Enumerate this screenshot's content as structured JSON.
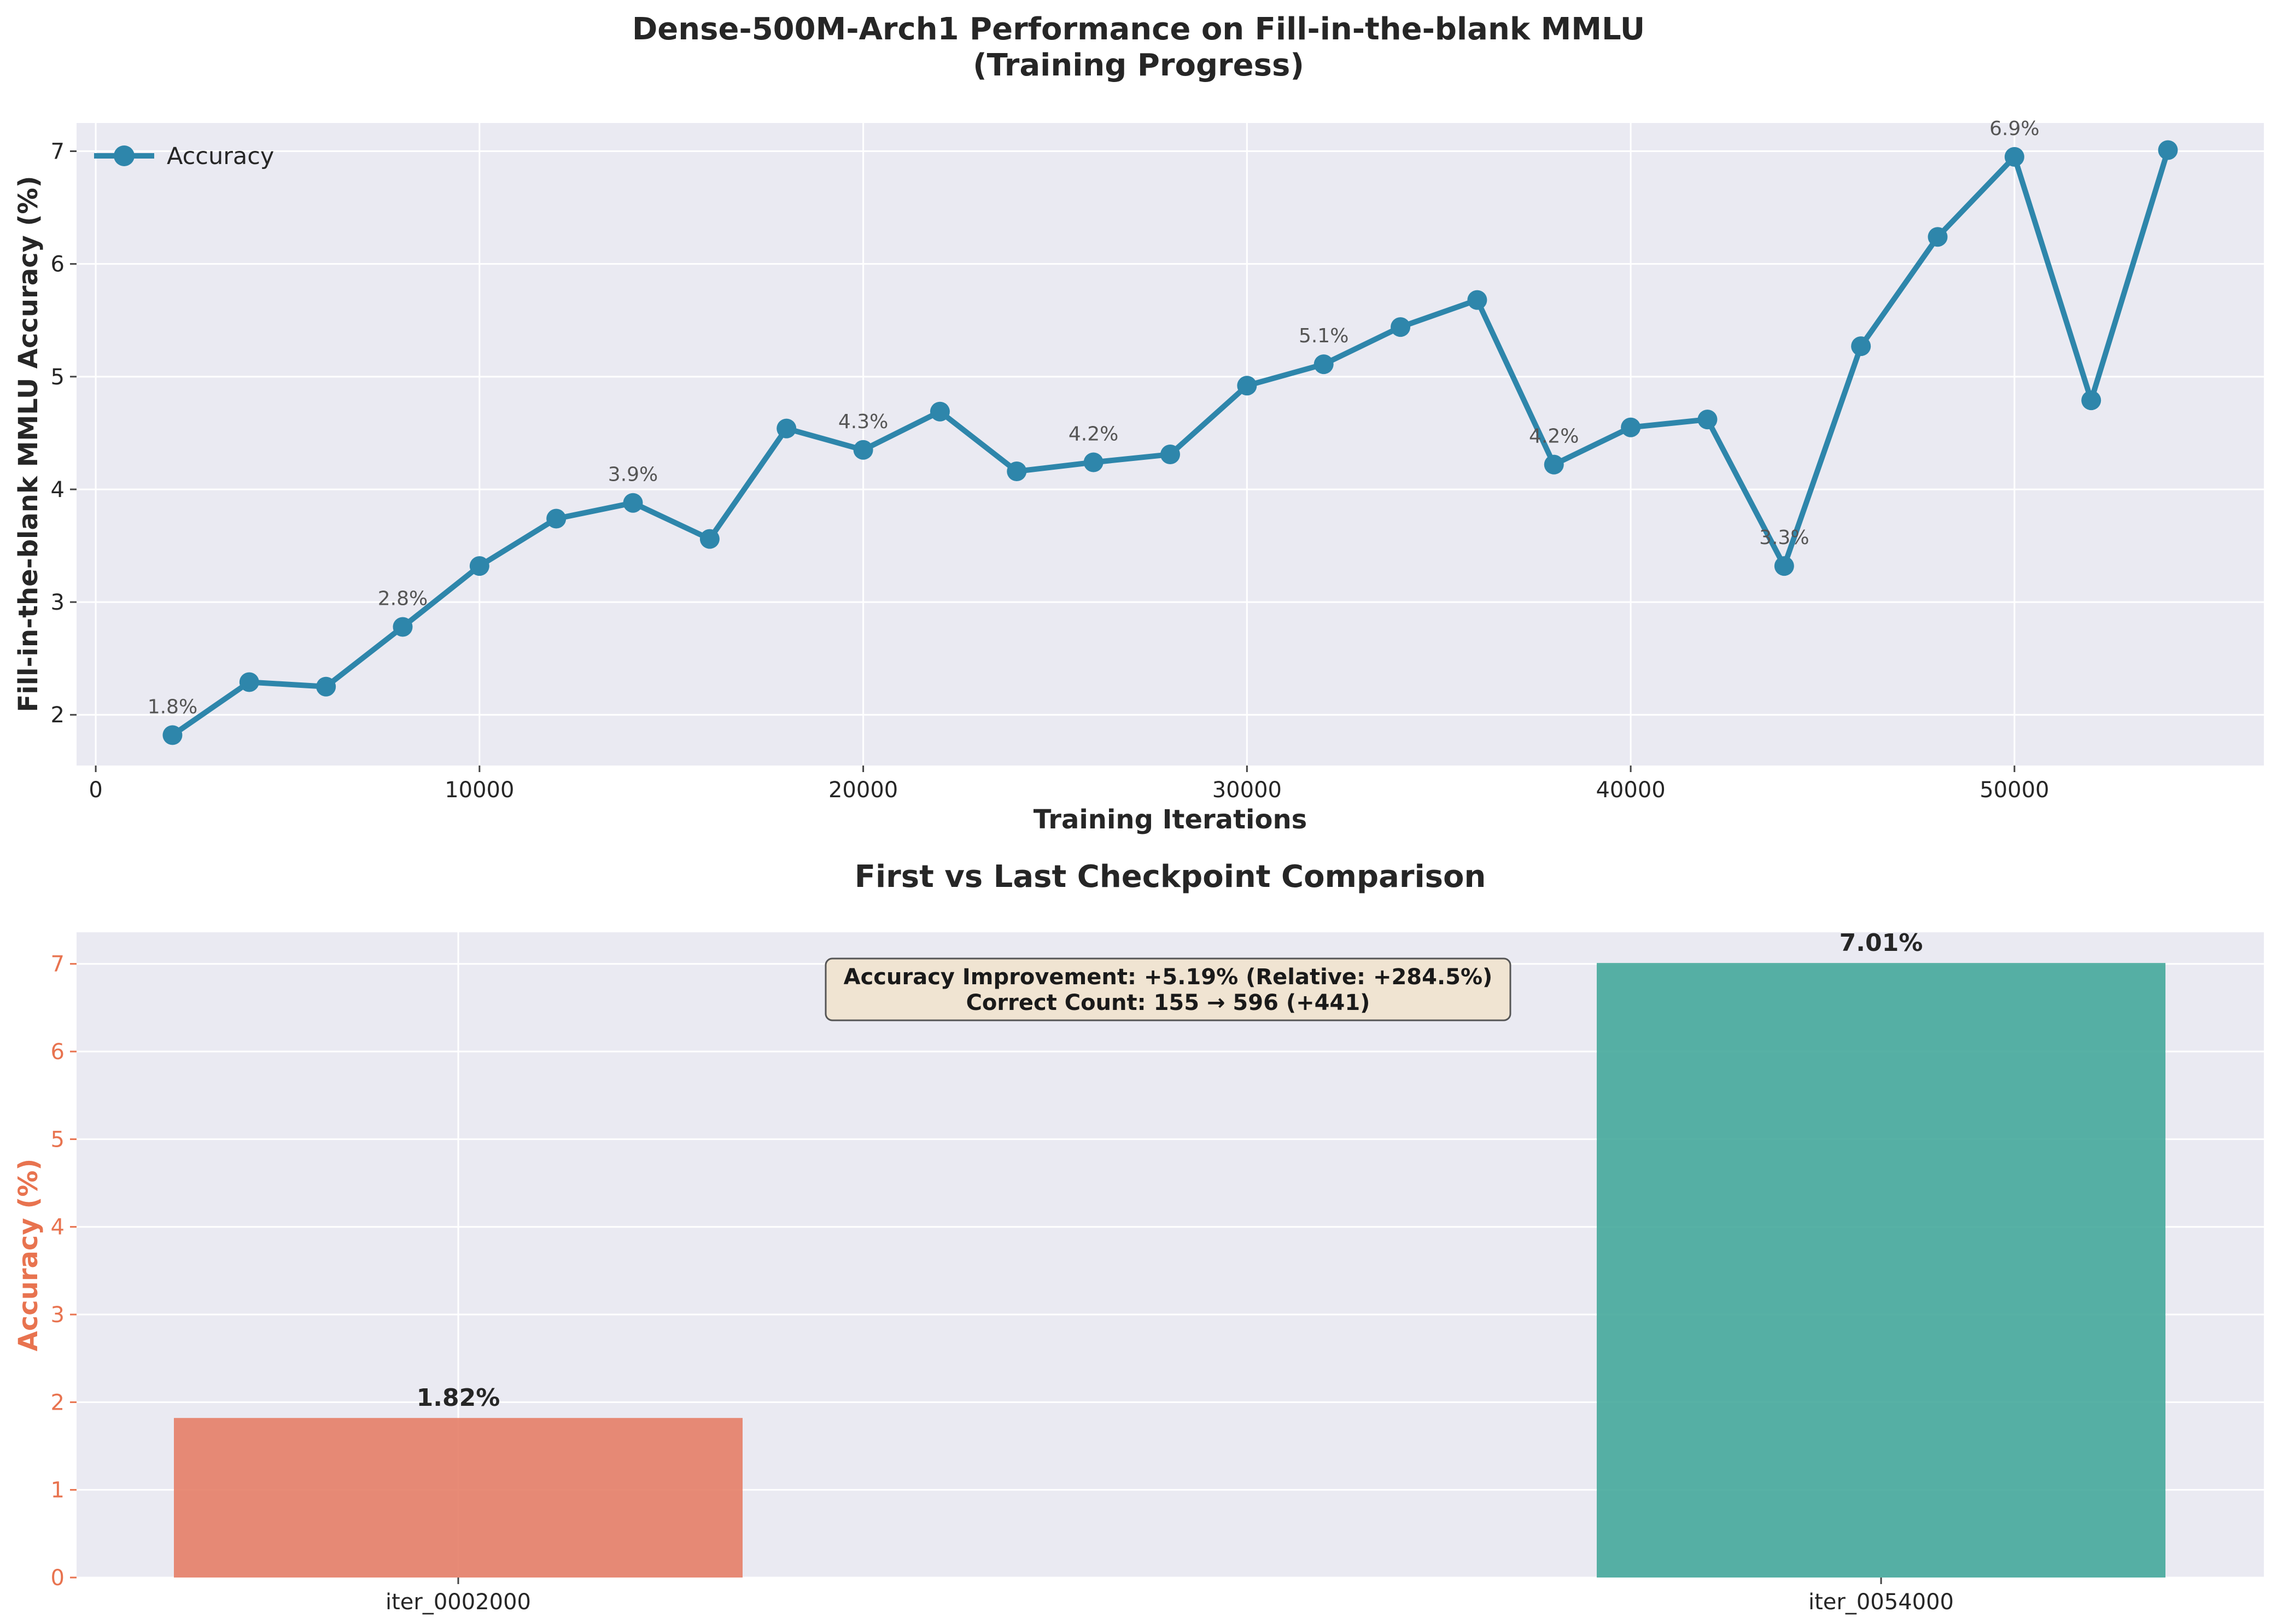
{
  "chart_data": [
    {
      "type": "line",
      "title": "Dense-500M-Arch1 Performance on Fill-in-the-blank MMLU",
      "subtitle": "(Training Progress)",
      "xlabel": "Training Iterations",
      "ylabel": "Fill-in-the-blank MMLU Accuracy (%)",
      "xlim": [
        -500,
        56500
      ],
      "ylim": [
        1.55,
        7.25
      ],
      "xticks": [
        0,
        10000,
        20000,
        30000,
        40000,
        50000
      ],
      "yticks": [
        2,
        3,
        4,
        5,
        6,
        7
      ],
      "grid": true,
      "legend": "top-left",
      "color": "#2e86ab",
      "series": [
        {
          "name": "Accuracy",
          "x": [
            2000,
            4000,
            6000,
            8000,
            10000,
            12000,
            14000,
            16000,
            18000,
            20000,
            22000,
            24000,
            26000,
            28000,
            30000,
            32000,
            34000,
            36000,
            38000,
            40000,
            42000,
            44000,
            46000,
            48000,
            50000,
            52000,
            54000
          ],
          "y": [
            1.82,
            2.29,
            2.25,
            2.78,
            3.32,
            3.74,
            3.88,
            3.56,
            4.54,
            4.35,
            4.69,
            4.16,
            4.24,
            4.31,
            4.92,
            5.11,
            5.44,
            5.68,
            4.22,
            4.55,
            4.62,
            3.32,
            5.27,
            6.24,
            6.95,
            4.79,
            7.01
          ]
        }
      ],
      "annotations": [
        {
          "x": 2000,
          "y": 1.82,
          "text": "1.8%"
        },
        {
          "x": 8000,
          "y": 2.78,
          "text": "2.8%"
        },
        {
          "x": 14000,
          "y": 3.88,
          "text": "3.9%"
        },
        {
          "x": 20000,
          "y": 4.35,
          "text": "4.3%"
        },
        {
          "x": 26000,
          "y": 4.24,
          "text": "4.2%"
        },
        {
          "x": 32000,
          "y": 5.11,
          "text": "5.1%"
        },
        {
          "x": 38000,
          "y": 4.22,
          "text": "4.2%"
        },
        {
          "x": 44000,
          "y": 3.32,
          "text": "3.3%"
        },
        {
          "x": 50000,
          "y": 6.95,
          "text": "6.9%"
        }
      ]
    },
    {
      "type": "bar",
      "title": "First vs Last Checkpoint Comparison",
      "xlabel": "",
      "ylabel": "Accuracy (%)",
      "ylim": [
        0,
        7.36
      ],
      "yticks": [
        0,
        1,
        2,
        3,
        4,
        5,
        6,
        7
      ],
      "grid": true,
      "categories": [
        "iter_0002000",
        "iter_0054000"
      ],
      "values": [
        1.82,
        7.01
      ],
      "value_labels": [
        "1.82%",
        "7.01%"
      ],
      "colors": [
        "#e67e67",
        "#45a89b"
      ],
      "ylabel_color": "#e8734f",
      "text_box": [
        "Accuracy Improvement: +5.19% (Relative: +284.5%)",
        "Correct Count: 155 → 596 (+441)"
      ]
    }
  ]
}
